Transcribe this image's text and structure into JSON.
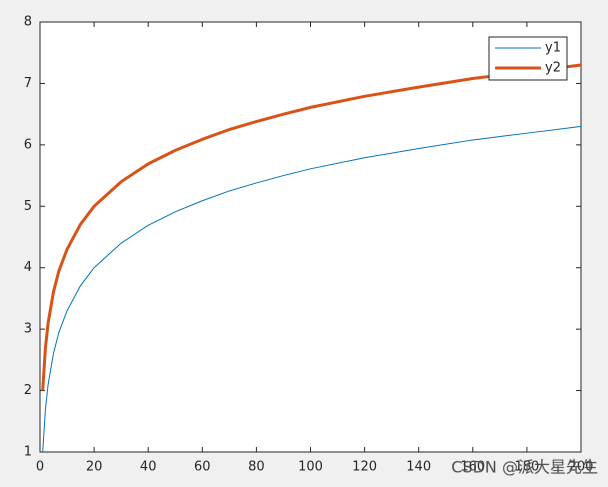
{
  "chart_data": {
    "type": "line",
    "x": [
      1,
      2,
      3,
      5,
      7,
      10,
      15,
      20,
      30,
      40,
      50,
      60,
      70,
      80,
      90,
      100,
      120,
      140,
      160,
      180,
      200
    ],
    "series": [
      {
        "name": "y1",
        "color": "#0072bd",
        "width": 1,
        "values": [
          1,
          1.69,
          2.1,
          2.61,
          2.95,
          3.3,
          3.71,
          4.0,
          4.4,
          4.69,
          4.91,
          5.09,
          5.25,
          5.38,
          5.5,
          5.61,
          5.79,
          5.94,
          6.08,
          6.19,
          6.3
        ]
      },
      {
        "name": "y2",
        "color": "#d95319",
        "width": 3,
        "values": [
          2,
          2.69,
          3.1,
          3.61,
          3.95,
          4.3,
          4.71,
          5.0,
          5.4,
          5.69,
          5.91,
          6.09,
          6.25,
          6.38,
          6.5,
          6.61,
          6.79,
          6.94,
          7.08,
          7.19,
          7.3
        ]
      }
    ],
    "xlim": [
      0,
      200
    ],
    "xticks": [
      0,
      20,
      40,
      60,
      80,
      100,
      120,
      140,
      160,
      180,
      200
    ],
    "ylim": [
      1,
      8
    ],
    "yticks": [
      1,
      2,
      3,
      4,
      5,
      6,
      7,
      8
    ],
    "grid": false,
    "legend": "top-right",
    "watermark": "CSDN @派大星先生"
  }
}
